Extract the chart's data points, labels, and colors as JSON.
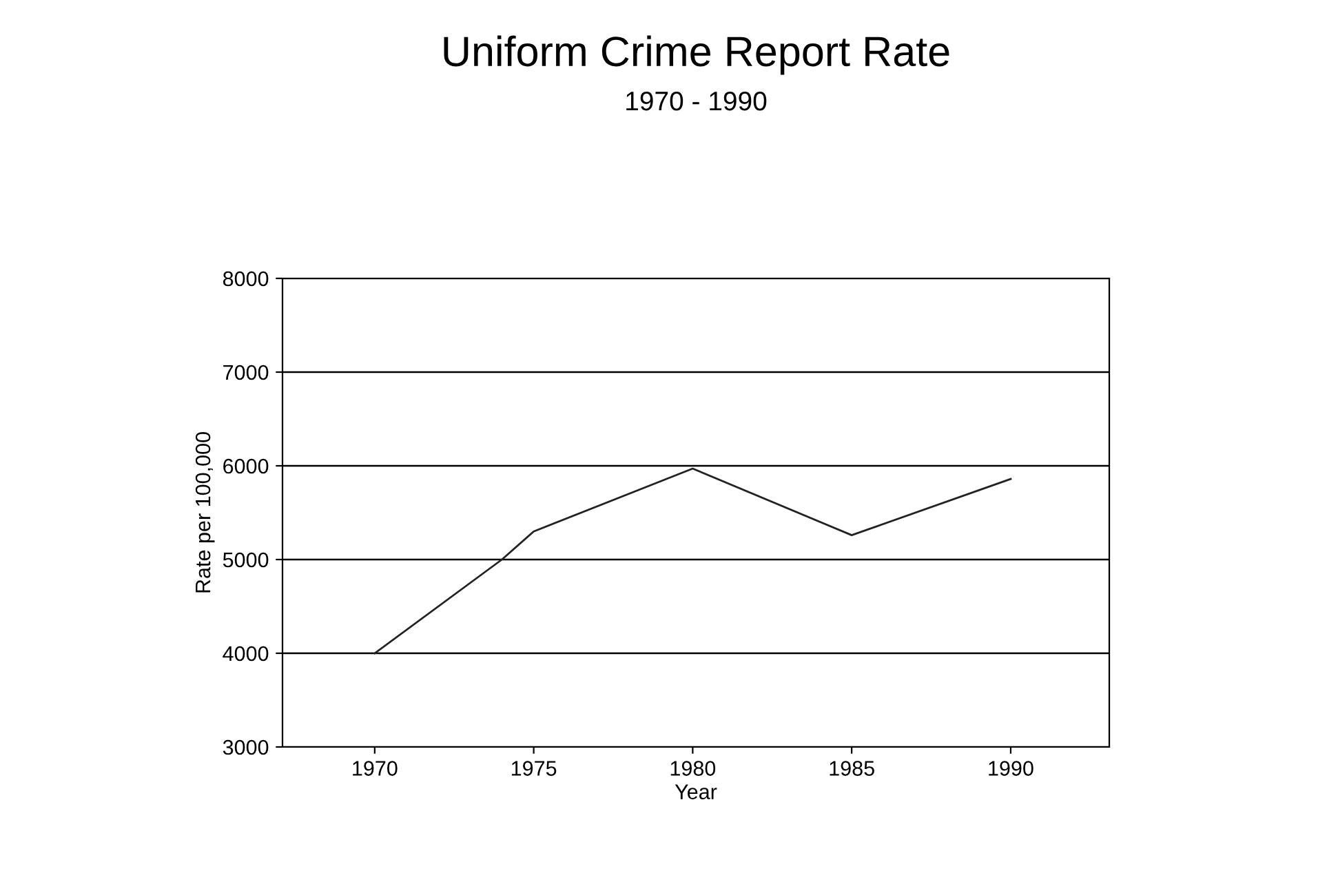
{
  "chart_data": {
    "type": "line",
    "title": "Uniform Crime Report Rate",
    "subtitle": "1970 - 1990",
    "xlabel": "Year",
    "ylabel": "Rate per 100,000",
    "x": [
      1970,
      1974,
      1975,
      1980,
      1985,
      1990
    ],
    "series": [
      {
        "color": "#222222",
        "values": [
          4000,
          5000,
          5300,
          5970,
          5260,
          5860
        ]
      }
    ],
    "xlim": [
      1967.1,
      1993.1
    ],
    "xticks": [
      1970,
      1975,
      1980,
      1985,
      1990
    ],
    "ylim": [
      3000,
      8000
    ],
    "yticks": [
      3000,
      4000,
      5000,
      6000,
      7000,
      8000
    ],
    "grid": "y",
    "marker": "none",
    "line_style": "solid"
  }
}
